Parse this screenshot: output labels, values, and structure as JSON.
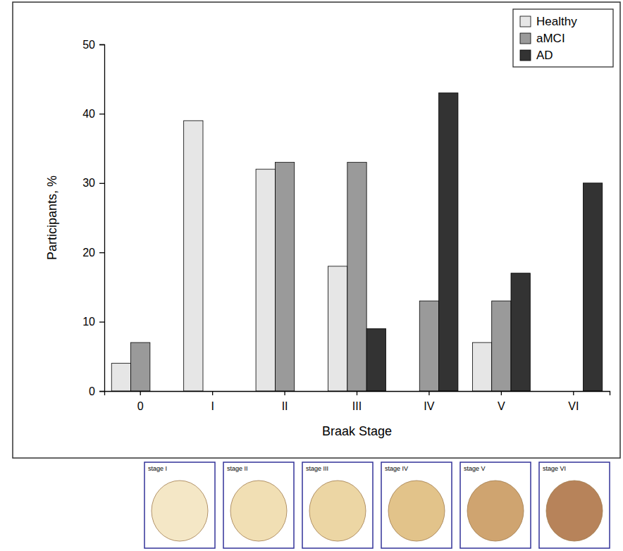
{
  "chart_data": {
    "type": "bar",
    "x_label": "Braak Stage",
    "y_label": "Participants, %",
    "categories": [
      "0",
      "I",
      "II",
      "III",
      "IV",
      "V",
      "VI"
    ],
    "series": [
      {
        "name": "Healthy",
        "color": "#e6e6e6",
        "values": [
          4,
          39,
          32,
          18,
          0,
          7,
          0
        ]
      },
      {
        "name": "aMCI",
        "color": "#9a9a9a",
        "values": [
          7,
          0,
          33,
          33,
          13,
          13,
          0
        ]
      },
      {
        "name": "AD",
        "color": "#333333",
        "values": [
          0,
          0,
          0,
          9,
          43,
          17,
          30
        ]
      }
    ],
    "ylim": [
      0,
      50
    ],
    "yticks": [
      0,
      10,
      20,
      30,
      40,
      50
    ],
    "legend": "top-right"
  },
  "stage_panels": {
    "labels": [
      "stage I",
      "stage II",
      "stage III",
      "stage IV",
      "stage V",
      "stage VI"
    ]
  }
}
